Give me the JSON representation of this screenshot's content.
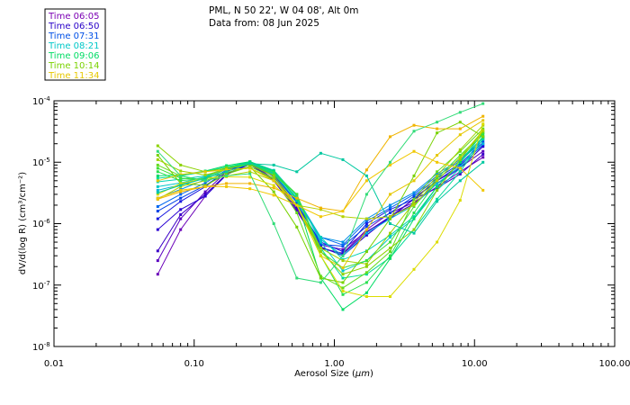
{
  "chart_data": {
    "type": "line",
    "title_line1": "PML, N 50 22', W 04 08', Alt 0m",
    "title_line2": "Data from: 08 Jun 2025",
    "xlabel_prefix": "Aerosol Size (",
    "xlabel_unit": "μm",
    "xlabel_suffix": ")",
    "ylabel": "dV/d(log R) (cm³/cm⁻²)",
    "x_scale": "log",
    "y_scale": "log",
    "xlim": [
      0.01,
      100
    ],
    "ylim": [
      1e-08,
      0.0001
    ],
    "x_tick_labels": [
      "0.01",
      "0.10",
      "1.00",
      "10.00",
      "100.00"
    ],
    "y_tick_labels": [
      {
        "base": "10",
        "exp": "-8"
      },
      {
        "base": "10",
        "exp": "-7"
      },
      {
        "base": "10",
        "exp": "-6"
      },
      {
        "base": "10",
        "exp": "-5"
      },
      {
        "base": "10",
        "exp": "-4"
      }
    ],
    "legend": [
      {
        "label": "Time 06:05",
        "color": "#7b00b4"
      },
      {
        "label": "Time 06:50",
        "color": "#2800c8"
      },
      {
        "label": "Time 07:31",
        "color": "#0050e6"
      },
      {
        "label": "Time 08:21",
        "color": "#00c8c8"
      },
      {
        "label": "Time 09:06",
        "color": "#00dc64"
      },
      {
        "label": "Time 10:14",
        "color": "#7ad200"
      },
      {
        "label": "Time 11:34",
        "color": "#e6c800"
      }
    ],
    "x": [
      0.055,
      0.08,
      0.12,
      0.17,
      0.25,
      0.37,
      0.54,
      0.8,
      1.15,
      1.7,
      2.5,
      3.7,
      5.4,
      7.9,
      11.5
    ],
    "series": [
      {
        "name": "s1",
        "color": "#6a00b8",
        "values": [
          1.5e-07,
          8e-07,
          2.8e-06,
          6.5e-06,
          9.5e-06,
          5e-06,
          1.6e-06,
          4e-07,
          3.3e-07,
          8e-07,
          1.5e-06,
          2.2e-06,
          4e-06,
          7e-06,
          1.2e-05
        ]
      },
      {
        "name": "s2",
        "color": "#5a00c0",
        "values": [
          2.5e-07,
          1.2e-06,
          3.3e-06,
          7e-06,
          1e-05,
          5.3e-06,
          1.8e-06,
          4.5e-07,
          3.8e-07,
          7.5e-07,
          1.2e-06,
          2.6e-06,
          5e-06,
          8.2e-06,
          1.5e-05
        ]
      },
      {
        "name": "s3",
        "color": "#3c00c8",
        "values": [
          3.6e-07,
          1.4e-06,
          3e-06,
          6.4e-06,
          9.2e-06,
          5e-06,
          1.7e-06,
          4e-07,
          3.2e-07,
          7.3e-07,
          1.3e-06,
          2.5e-06,
          3.8e-06,
          6.4e-06,
          1.35e-05
        ]
      },
      {
        "name": "s4",
        "color": "#2800d2",
        "values": [
          8e-07,
          1.7e-06,
          2.8e-06,
          6.2e-06,
          9.6e-06,
          5.1e-06,
          1.9e-06,
          4.2e-07,
          3e-07,
          6.5e-07,
          1.3e-06,
          2.1e-06,
          4.5e-06,
          8e-06,
          1.8e-05
        ]
      },
      {
        "name": "s5",
        "color": "#1a1ae0",
        "values": [
          1.2e-06,
          2.3e-06,
          4e-06,
          7.2e-06,
          1e-05,
          5.8e-06,
          2e-06,
          5e-07,
          3.5e-07,
          1e-06,
          1.7e-06,
          2.5e-06,
          5e-06,
          9e-06,
          1.9e-05
        ]
      },
      {
        "name": "s6",
        "color": "#0040e6",
        "values": [
          1.6e-06,
          2.6e-06,
          4.2e-06,
          7e-06,
          9.8e-06,
          6.2e-06,
          2.2e-06,
          4.6e-07,
          4.3e-07,
          9e-07,
          1.5e-06,
          2.8e-06,
          5.5e-06,
          9.5e-06,
          2.1e-05
        ]
      },
      {
        "name": "s7",
        "color": "#0066f0",
        "values": [
          1.9e-06,
          3e-06,
          4.6e-06,
          7.5e-06,
          1e-05,
          6.5e-06,
          2.3e-06,
          6e-07,
          4.5e-07,
          1.1e-06,
          1.8e-06,
          3e-06,
          6e-06,
          1.05e-05,
          2.3e-05
        ]
      },
      {
        "name": "s8",
        "color": "#0090e6",
        "values": [
          2.6e-06,
          3.6e-06,
          5.2e-06,
          7.8e-06,
          9.8e-06,
          6.7e-06,
          2.6e-06,
          6e-07,
          5e-07,
          1.2e-06,
          2e-06,
          3.2e-06,
          6.5e-06,
          1.1e-05,
          2.5e-05
        ]
      },
      {
        "name": "s9",
        "color": "#00b4dc",
        "values": [
          3.5e-06,
          4.3e-06,
          5.6e-06,
          8e-06,
          1e-05,
          7e-06,
          2.6e-06,
          5.5e-07,
          3e-07,
          7e-07,
          1.2e-06,
          2e-06,
          4.5e-06,
          8.5e-06,
          2e-05
        ]
      },
      {
        "name": "s10",
        "color": "#00c8c8",
        "values": [
          4e-06,
          4.6e-06,
          5.8e-06,
          8.2e-06,
          1.02e-05,
          7.4e-06,
          2.8e-06,
          5e-07,
          1.7e-07,
          2.5e-07,
          6e-07,
          1.2e-06,
          3.5e-06,
          8e-06,
          2.6e-05
        ]
      },
      {
        "name": "s11",
        "color": "#00d2b4",
        "values": [
          4.8e-06,
          5.3e-06,
          6e-06,
          8e-06,
          9.5e-06,
          6.5e-06,
          2.4e-06,
          6e-07,
          2.6e-07,
          3.6e-07,
          6.5e-07,
          1.3e-06,
          4e-06,
          1e-05,
          3e-05
        ]
      },
      {
        "name": "s12",
        "color": "#00dc96",
        "values": [
          5.5e-06,
          6e-06,
          7e-06,
          8.4e-06,
          9.8e-06,
          7e-06,
          2.6e-06,
          4e-07,
          1.3e-07,
          1.5e-07,
          2.8e-07,
          8e-07,
          2.5e-06,
          7e-06,
          2.4e-05
        ]
      },
      {
        "name": "s13",
        "color": "#00dc64",
        "values": [
          6e-06,
          6.2e-06,
          7.2e-06,
          8.8e-06,
          1.02e-05,
          7.2e-06,
          2.5e-06,
          1.3e-07,
          4e-08,
          7.5e-08,
          2.7e-07,
          1.2e-06,
          4e-06,
          1e-05,
          2.6e-05
        ]
      },
      {
        "name": "s14",
        "color": "#28e050",
        "values": [
          7e-06,
          5e-06,
          5.5e-06,
          8.4e-06,
          9.2e-06,
          6.8e-06,
          3e-06,
          3e-07,
          7e-08,
          1.1e-07,
          3e-07,
          1.5e-06,
          5e-06,
          1.2e-05,
          2.8e-05
        ]
      },
      {
        "name": "s15",
        "color": "#3ee034",
        "values": [
          8e-06,
          5.5e-06,
          5.2e-06,
          7.8e-06,
          9.5e-06,
          6.2e-06,
          3e-06,
          3.5e-07,
          1.9e-07,
          2.5e-07,
          5e-07,
          1.9e-06,
          5.5e-06,
          1.3e-05,
          3e-05
        ]
      },
      {
        "name": "s16",
        "color": "#64dc1e",
        "values": [
          9e-06,
          6e-06,
          5e-06,
          6.8e-06,
          8.5e-06,
          5.5e-06,
          1.5e-06,
          1.4e-07,
          9e-08,
          1.6e-07,
          3.5e-07,
          2.5e-06,
          7e-06,
          1.5e-05,
          3.5e-05
        ]
      },
      {
        "name": "s17",
        "color": "#78d200",
        "values": [
          1.3e-05,
          4.5e-06,
          4.2e-06,
          6.4e-06,
          8.5e-06,
          3.3e-06,
          8.8e-07,
          1.3e-07,
          1.1e-07,
          3.5e-07,
          1.2e-06,
          6e-06,
          3e-05,
          4.5e-05,
          2.6e-05
        ]
      },
      {
        "name": "s18",
        "color": "#8cd200",
        "values": [
          1.85e-05,
          9e-06,
          7e-06,
          8e-06,
          9e-06,
          6e-06,
          2e-06,
          3.5e-07,
          1.5e-07,
          2e-07,
          4e-07,
          8e-07,
          3.5e-06,
          1.1e-05,
          3.2e-05
        ]
      },
      {
        "name": "s19",
        "color": "#a0d200",
        "values": [
          1.1e-05,
          7.2e-06,
          6.2e-06,
          7.6e-06,
          8e-06,
          5.3e-06,
          2e-06,
          4e-07,
          2.5e-07,
          2.2e-07,
          7e-07,
          2.2e-06,
          6e-06,
          1.6e-05,
          4e-05
        ]
      },
      {
        "name": "s20",
        "color": "#b4d200",
        "values": [
          2.5e-06,
          4e-06,
          5e-06,
          6e-06,
          7e-06,
          5e-06,
          2e-06,
          1.7e-06,
          1.3e-06,
          1.2e-06,
          1.3e-06,
          2e-06,
          5e-06,
          1.2e-05,
          3.3e-05
        ]
      },
      {
        "name": "s21",
        "color": "#e6c800",
        "values": [
          5e-06,
          6.3e-06,
          7e-06,
          7.5e-06,
          8e-06,
          5e-06,
          2e-06,
          3e-07,
          1.9e-07,
          8e-07,
          3e-06,
          5e-06,
          1.3e-05,
          2.8e-05,
          4.8e-05
        ]
      },
      {
        "name": "s22",
        "color": "#f0b400",
        "values": [
          2.5e-06,
          3.3e-06,
          4e-06,
          4.5e-06,
          4.5e-06,
          3.8e-06,
          2.6e-06,
          1.8e-06,
          1.6e-06,
          7.5e-06,
          2.6e-05,
          4e-05,
          3.5e-05,
          3.5e-05,
          5.6e-05
        ]
      },
      {
        "name": "s23",
        "color": "#f0c800",
        "values": [
          2.6e-06,
          3.5e-06,
          4e-06,
          4e-06,
          3.7e-06,
          2.9e-06,
          2e-06,
          1.3e-06,
          1.6e-06,
          5e-06,
          9e-06,
          1.5e-05,
          1e-05,
          8e-06,
          3.5e-06
        ]
      },
      {
        "name": "s24",
        "color": "#dcdc00",
        "values": [
          3e-06,
          4.5e-06,
          5.5e-06,
          5.8e-06,
          5.7e-06,
          4.2e-06,
          2e-06,
          3e-07,
          8e-08,
          6.5e-08,
          6.5e-08,
          1.8e-07,
          5e-07,
          2.4e-06,
          4.2e-05
        ]
      },
      {
        "name": "s25",
        "color": "#00c8a0",
        "values": [
          3.2e-06,
          4.2e-06,
          5.5e-06,
          7e-06,
          9.5e-06,
          9e-06,
          7e-06,
          1.4e-05,
          1.1e-05,
          6e-06,
          1e-06,
          7e-07,
          2.3e-06,
          5e-06,
          1e-05
        ]
      },
      {
        "name": "s26",
        "color": "#32dc78",
        "values": [
          1.5e-05,
          6e-06,
          5e-06,
          6e-06,
          6.5e-06,
          1e-06,
          1.3e-07,
          1.1e-07,
          3e-07,
          3e-06,
          1e-05,
          3.2e-05,
          4.5e-05,
          6.5e-05,
          9e-05
        ]
      }
    ]
  }
}
